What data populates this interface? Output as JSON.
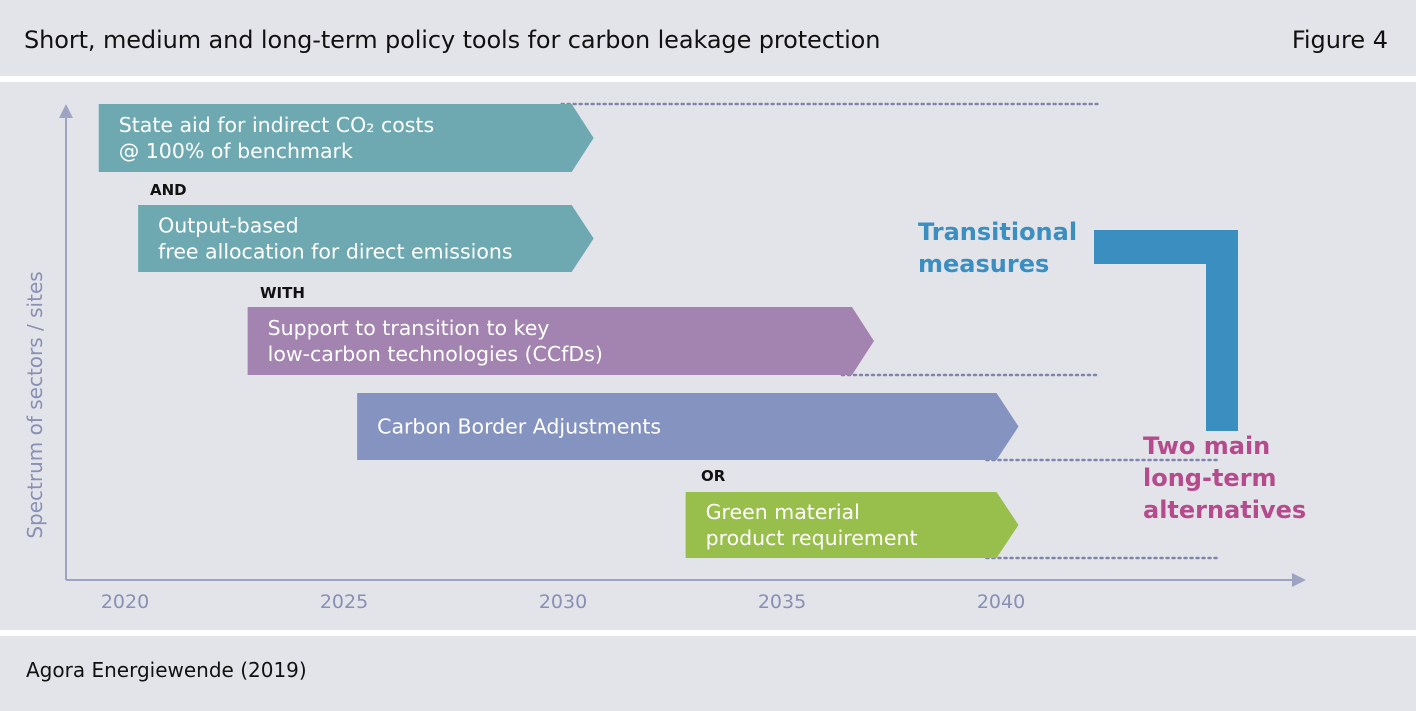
{
  "header": {
    "title": "Short, medium and long-term policy tools for carbon leakage protection",
    "figure_label": "Figure 4"
  },
  "footer": {
    "source": "Agora Energiewende (2019)"
  },
  "chart_data": {
    "type": "timeline",
    "x_axis": {
      "ticks": [
        "2020",
        "2025",
        "2030",
        "2035",
        "2040"
      ],
      "range": [
        2019,
        2046
      ]
    },
    "y_axis": {
      "label": "Spectrum of sectors / sites"
    },
    "bars": [
      {
        "lines": [
          "State aid for indirect CO₂ costs",
          "@ 100% of benchmark"
        ],
        "start": 2019.4,
        "end": 2030.7,
        "color": "#6ea9b2",
        "dotted_to": 2042.2
      },
      {
        "lines": [
          "Output-based",
          "free allocation for direct emissions"
        ],
        "start": 2020.3,
        "end": 2030.7,
        "color": "#6ea9b2"
      },
      {
        "lines": [
          "Support to transition to key",
          "low-carbon technologies (CCfDs)"
        ],
        "start": 2022.8,
        "end": 2037.1,
        "color": "#a383af",
        "dotted_to": 2042.2
      },
      {
        "lines": [
          "Carbon Border Adjustments"
        ],
        "start": 2025.3,
        "end": 2040.4,
        "color": "#8593c0",
        "dotted_to": 2045.0
      },
      {
        "lines": [
          "Green material",
          "product requirement"
        ],
        "start": 2032.8,
        "end": 2040.4,
        "color": "#98be4b",
        "dotted_to": 2045.0
      }
    ],
    "connectors": [
      "AND",
      "WITH",
      "OR"
    ],
    "annotations": {
      "transitional": [
        "Transitional",
        "measures"
      ],
      "long_term": [
        "Two main",
        "long-term",
        "alternatives"
      ]
    },
    "colors": {
      "bracket": "#3b8ec0",
      "dotted": "#7f86aa",
      "axis": "#9ea3c2"
    }
  }
}
